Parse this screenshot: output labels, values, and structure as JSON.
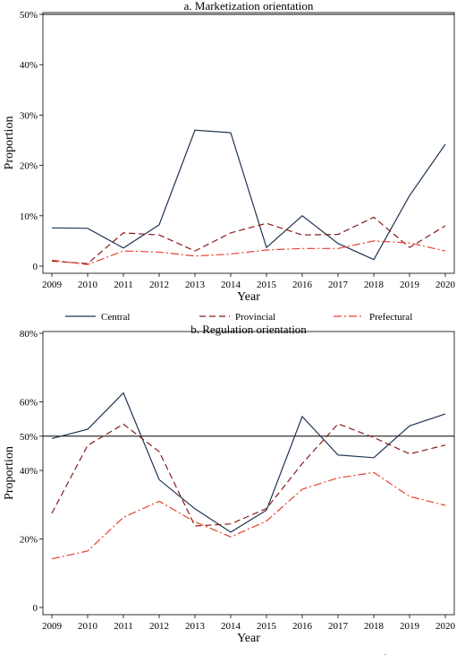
{
  "chart_data": [
    {
      "type": "line",
      "title": "a. Marketization orientation",
      "xlabel": "Year",
      "ylabel": "Proportion",
      "x": [
        2009,
        2010,
        2011,
        2012,
        2013,
        2014,
        2015,
        2016,
        2017,
        2018,
        2019,
        2020
      ],
      "ylim": [
        0,
        0.5
      ],
      "y_ticks": [
        0,
        0.1,
        0.2,
        0.3,
        0.4,
        0.5
      ],
      "y_tick_labels": [
        "0",
        "10%",
        "20%",
        "30%",
        "40%",
        "50%"
      ],
      "reference_line": 0.5,
      "legend": "bottom",
      "series": [
        {
          "name": "Central",
          "color": "#1f3552",
          "dash": "solid",
          "values": [
            0.076,
            0.075,
            0.036,
            0.082,
            0.27,
            0.265,
            0.037,
            0.1,
            0.045,
            0.013,
            0.14,
            0.242
          ]
        },
        {
          "name": "Provincial",
          "color": "#8b1a1a",
          "dash": "dash",
          "values": [
            0.01,
            0.005,
            0.066,
            0.062,
            0.03,
            0.066,
            0.085,
            0.062,
            0.063,
            0.097,
            0.037,
            0.08
          ]
        },
        {
          "name": "Prefectural",
          "color": "#e8412f",
          "dash": "dashdot",
          "values": [
            0.012,
            0.003,
            0.03,
            0.028,
            0.02,
            0.024,
            0.032,
            0.035,
            0.035,
            0.05,
            0.046,
            0.03
          ]
        }
      ]
    },
    {
      "type": "line",
      "title": "b. Regulation orientation",
      "xlabel": "Year",
      "ylabel": "Proportion",
      "x": [
        2009,
        2010,
        2011,
        2012,
        2013,
        2014,
        2015,
        2016,
        2017,
        2018,
        2019,
        2020
      ],
      "ylim": [
        0,
        0.8
      ],
      "y_ticks": [
        0,
        0.2,
        0.4,
        0.5,
        0.6,
        0.8
      ],
      "y_tick_labels": [
        "0",
        "20%",
        "40%",
        "50%",
        "60%",
        "80%"
      ],
      "reference_line": 0.5,
      "legend": "bottom",
      "series": [
        {
          "name": "Central",
          "color": "#1f3552",
          "dash": "solid",
          "values": [
            0.493,
            0.52,
            0.626,
            0.373,
            0.288,
            0.22,
            0.284,
            0.557,
            0.445,
            0.437,
            0.53,
            0.565
          ]
        },
        {
          "name": "Provincial",
          "color": "#8b1a1a",
          "dash": "dash",
          "values": [
            0.275,
            0.473,
            0.535,
            0.455,
            0.238,
            0.244,
            0.289,
            0.42,
            0.536,
            0.496,
            0.448,
            0.474
          ]
        },
        {
          "name": "Prefectural",
          "color": "#e8412f",
          "dash": "dashdot",
          "values": [
            0.142,
            0.165,
            0.263,
            0.31,
            0.25,
            0.206,
            0.252,
            0.345,
            0.378,
            0.394,
            0.324,
            0.298
          ]
        }
      ]
    }
  ]
}
